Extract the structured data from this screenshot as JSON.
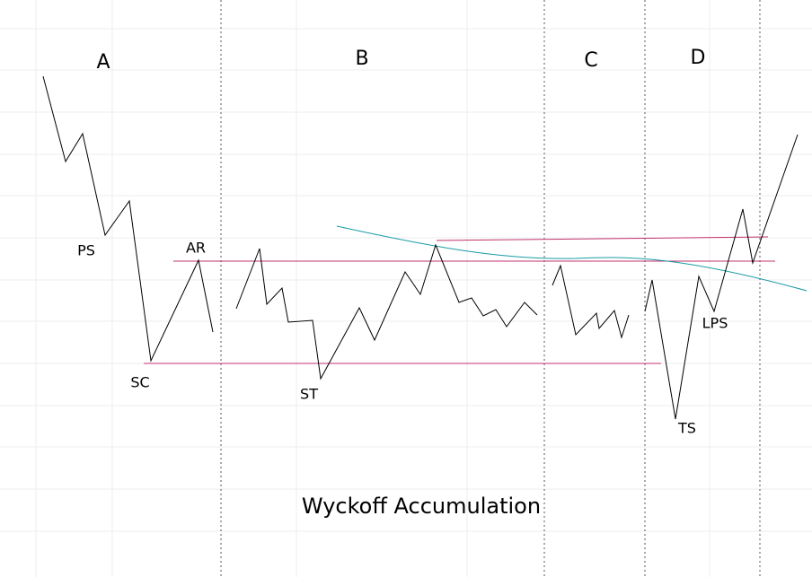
{
  "phases": [
    "A",
    "B",
    "C",
    "D"
  ],
  "events": {
    "ps": "PS",
    "sc": "SC",
    "ar": "AR",
    "st": "ST",
    "ts": "TS",
    "lps": "LPS"
  },
  "title": "Wyckoff Accumulation"
}
